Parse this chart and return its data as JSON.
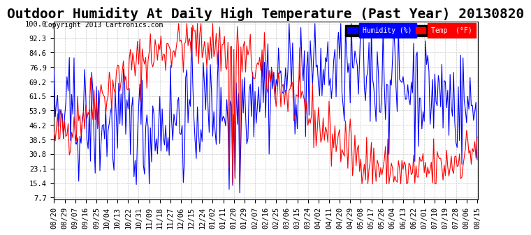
{
  "title": "Outdoor Humidity At Daily High Temperature (Past Year) 20130820",
  "copyright": "Copyright 2013 Cartronics.com",
  "legend_humidity_label": "Humidity (%)",
  "legend_temp_label": "Temp  (°F)",
  "humidity_color": "#0000FF",
  "temp_color": "#FF0000",
  "legend_humidity_bg": "#0000FF",
  "legend_temp_bg": "#FF0000",
  "bg_color": "#FFFFFF",
  "grid_color": "#CCCCCC",
  "yticks": [
    7.7,
    15.4,
    23.1,
    30.8,
    38.5,
    46.2,
    53.9,
    61.5,
    69.2,
    76.9,
    84.6,
    92.3,
    100.0
  ],
  "ymin": 7.7,
  "ymax": 100.0,
  "title_fontsize": 14,
  "axis_fontsize": 7.5
}
